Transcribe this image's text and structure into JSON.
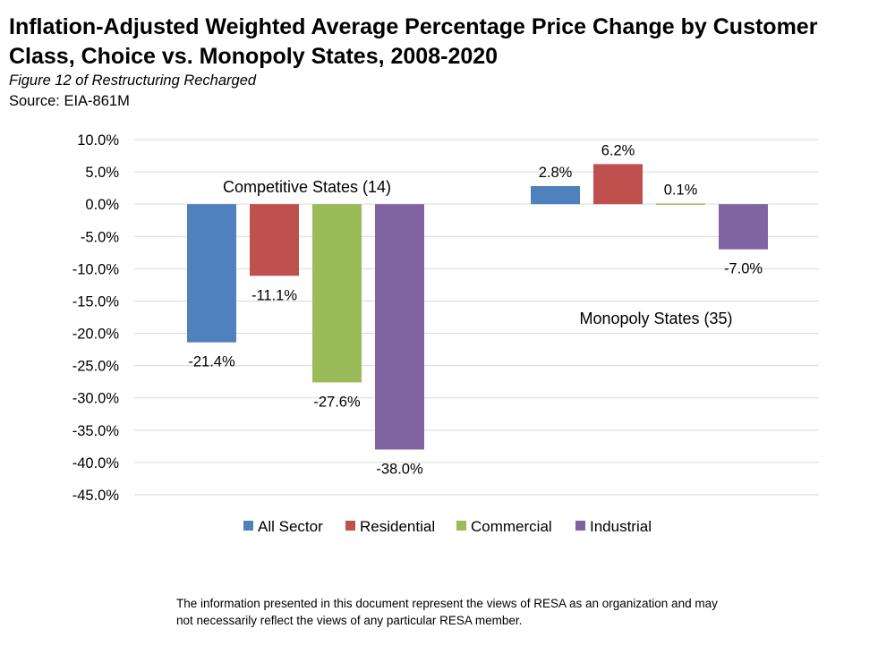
{
  "header": {
    "title": "Inflation-Adjusted Weighted Average Percentage Price Change by Customer Class, Choice vs. Monopoly States, 2008-2020",
    "subtitle": "Figure 12 of Restructuring Recharged",
    "source": "Source: EIA-861M"
  },
  "chart_data": {
    "type": "bar",
    "categories": [
      "Competitive States (14)",
      "Monopoly States (35)"
    ],
    "series": [
      {
        "name": "All Sector",
        "color": "#4F81BD",
        "values": [
          -21.4,
          2.8
        ]
      },
      {
        "name": "Residential",
        "color": "#C0504D",
        "values": [
          -11.1,
          6.2
        ]
      },
      {
        "name": "Commercial",
        "color": "#9BBB59",
        "values": [
          -27.6,
          0.1
        ]
      },
      {
        "name": "Industrial",
        "color": "#8064A2",
        "values": [
          -38.0,
          -7.0
        ]
      }
    ],
    "data_labels": [
      [
        "-21.4%",
        "-11.1%",
        "-27.6%",
        "-38.0%"
      ],
      [
        "2.8%",
        "6.2%",
        "0.1%",
        "-7.0%"
      ]
    ],
    "yticks": [
      "10.0%",
      "5.0%",
      "0.0%",
      "-5.0%",
      "-10.0%",
      "-15.0%",
      "-20.0%",
      "-25.0%",
      "-30.0%",
      "-35.0%",
      "-40.0%",
      "-45.0%"
    ],
    "ylim": [
      -45,
      10
    ],
    "ytick_step": 5,
    "grid": true,
    "legend_position": "bottom",
    "xlabel": "",
    "ylabel": ""
  },
  "footer": {
    "disclaimer": "The information presented in this document represent the views of RESA as an organization and may not necessarily reflect the views of any particular RESA member."
  }
}
